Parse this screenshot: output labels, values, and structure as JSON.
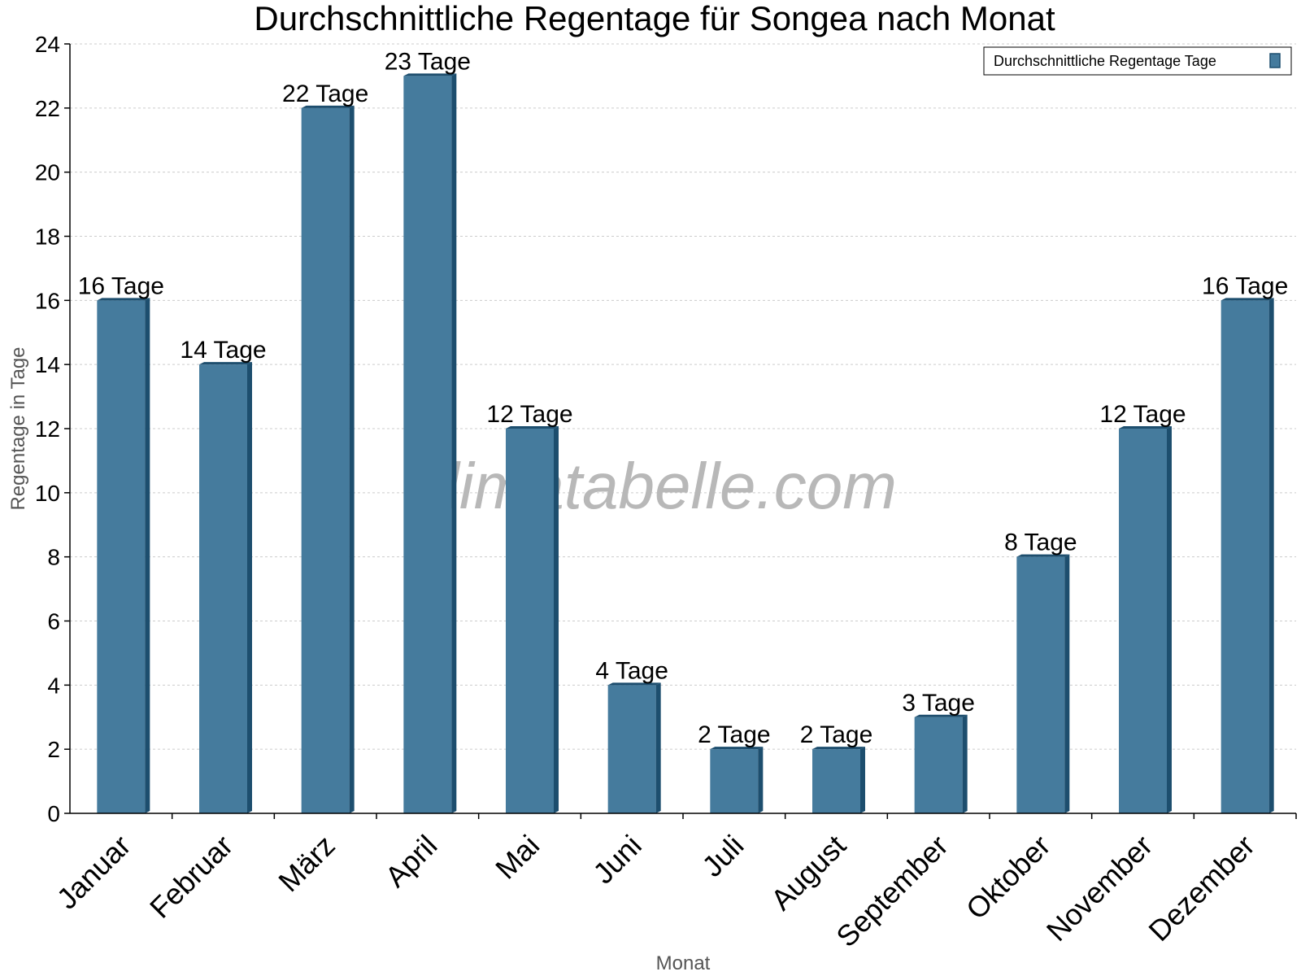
{
  "chart_data": {
    "type": "bar",
    "title": "Durchschnittliche Regentage für Songea nach Monat",
    "xlabel": "Monat",
    "ylabel": "Regentage in Tage",
    "categories": [
      "Januar",
      "Februar",
      "März",
      "April",
      "Mai",
      "Juni",
      "Juli",
      "August",
      "September",
      "Oktober",
      "November",
      "Dezember"
    ],
    "series": [
      {
        "name": "Durchschnittliche Regentage Tage",
        "values": [
          16,
          14,
          22,
          23,
          12,
          4,
          2,
          2,
          3,
          8,
          12,
          16
        ],
        "value_labels": [
          "16 Tage",
          "14 Tage",
          "22 Tage",
          "23 Tage",
          "12 Tage",
          "4 Tage",
          "2 Tage",
          "2 Tage",
          "3 Tage",
          "8 Tage",
          "12 Tage",
          "16 Tage"
        ]
      }
    ],
    "ylim": [
      0,
      24
    ],
    "yticks": [
      0,
      2,
      4,
      6,
      8,
      10,
      12,
      14,
      16,
      18,
      20,
      22,
      24
    ],
    "grid": true,
    "legend_position": "top-right",
    "colors": {
      "bar": "#457b9d",
      "bar_side": "#1d4e6e",
      "grid": "#cccccc",
      "watermark": "#b8b8b8"
    },
    "watermark": "klimatabelle.com"
  }
}
